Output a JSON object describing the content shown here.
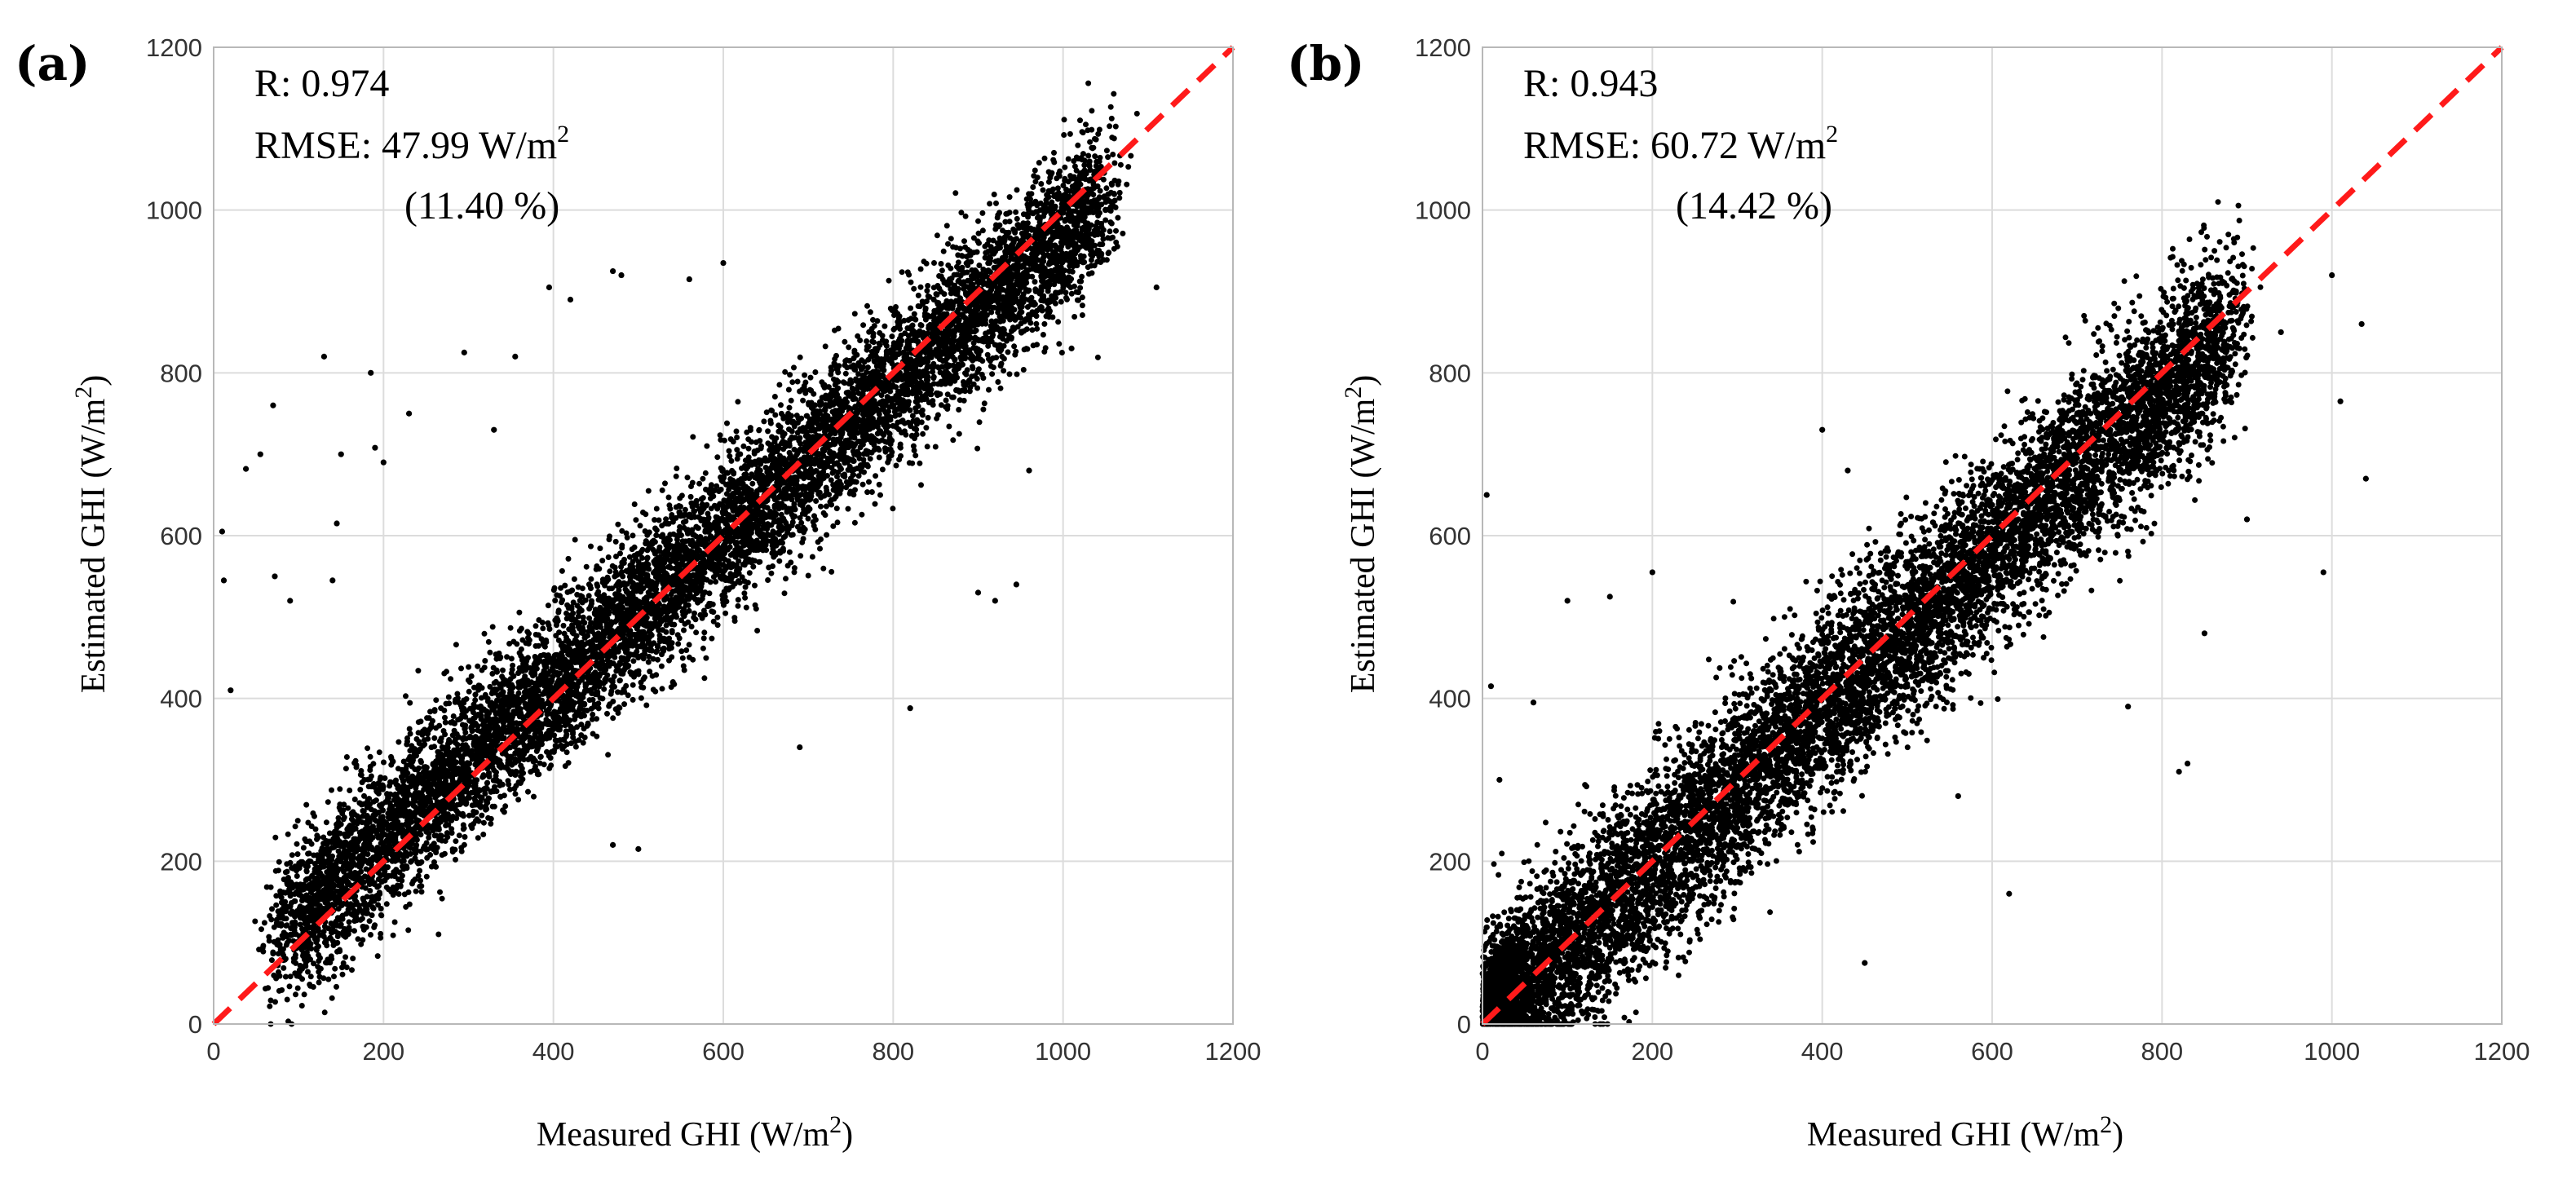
{
  "chart_data": [
    {
      "id": "a",
      "type": "scatter",
      "panel_label": "(a)",
      "xlabel": "Measured GHI (W/m",
      "xlabel_sup": "2",
      "xlabel_end": ")",
      "ylabel": "Estimated GHI (W/m",
      "ylabel_sup": "2",
      "ylabel_end": ")",
      "xlim": [
        0,
        1200
      ],
      "ylim": [
        0,
        1200
      ],
      "xticks": [
        0,
        200,
        400,
        600,
        800,
        1000,
        1200
      ],
      "yticks": [
        0,
        200,
        400,
        600,
        800,
        1000,
        1200
      ],
      "grid": true,
      "reference_line": "1:1",
      "stats": {
        "r_line": "R: 0.974",
        "rmse_line": "RMSE: 47.99 W/m",
        "rmse_sup": "2",
        "pct_line": "(11.40 %)"
      },
      "series": [
        {
          "name": "points",
          "color": "#000000",
          "trend": {
            "slope": 0.93,
            "intercept": 42,
            "x_range": [
              60,
              1070
            ],
            "spread": 48,
            "count": 9000
          },
          "outliers": [
            {
              "x": 10,
              "y": 605
            },
            {
              "x": 12,
              "y": 545
            },
            {
              "x": 20,
              "y": 410
            },
            {
              "x": 38,
              "y": 682
            },
            {
              "x": 55,
              "y": 700
            },
            {
              "x": 70,
              "y": 760
            },
            {
              "x": 72,
              "y": 550
            },
            {
              "x": 90,
              "y": 520
            },
            {
              "x": 130,
              "y": 820
            },
            {
              "x": 140,
              "y": 545
            },
            {
              "x": 145,
              "y": 615
            },
            {
              "x": 150,
              "y": 700
            },
            {
              "x": 185,
              "y": 800
            },
            {
              "x": 190,
              "y": 708
            },
            {
              "x": 200,
              "y": 690
            },
            {
              "x": 230,
              "y": 750
            },
            {
              "x": 295,
              "y": 825
            },
            {
              "x": 330,
              "y": 730
            },
            {
              "x": 355,
              "y": 820
            },
            {
              "x": 395,
              "y": 905
            },
            {
              "x": 420,
              "y": 890
            },
            {
              "x": 470,
              "y": 925
            },
            {
              "x": 480,
              "y": 920
            },
            {
              "x": 560,
              "y": 915
            },
            {
              "x": 600,
              "y": 935
            },
            {
              "x": 690,
              "y": 340
            },
            {
              "x": 820,
              "y": 388
            },
            {
              "x": 900,
              "y": 530
            },
            {
              "x": 920,
              "y": 520
            },
            {
              "x": 945,
              "y": 540
            },
            {
              "x": 960,
              "y": 680
            },
            {
              "x": 1010,
              "y": 830
            },
            {
              "x": 1110,
              "y": 905
            },
            {
              "x": 1050,
              "y": 1000
            },
            {
              "x": 470,
              "y": 220
            },
            {
              "x": 500,
              "y": 215
            }
          ]
        }
      ]
    },
    {
      "id": "b",
      "type": "scatter",
      "panel_label": "(b)",
      "xlabel": "Measured GHI (W/m",
      "xlabel_sup": "2",
      "xlabel_end": ")",
      "ylabel": "Estimated GHI (W/m",
      "ylabel_sup": "2",
      "ylabel_end": ")",
      "xlim": [
        0,
        1200
      ],
      "ylim": [
        0,
        1200
      ],
      "xticks": [
        0,
        200,
        400,
        600,
        800,
        1000,
        1200
      ],
      "yticks": [
        0,
        200,
        400,
        600,
        800,
        1000,
        1200
      ],
      "grid": true,
      "reference_line": "1:1",
      "stats": {
        "r_line": "R: 0.943",
        "rmse_line": "RMSE: 60.72 W/m",
        "rmse_sup": "2",
        "pct_line": "(14.42 %)"
      },
      "series": [
        {
          "name": "points",
          "color": "#000000",
          "trend": {
            "slope": 0.97,
            "intercept": 0,
            "x_range": [
              0,
              900
            ],
            "spread": 58,
            "count": 9000
          },
          "outliers": [
            {
              "x": 5,
              "y": 650
            },
            {
              "x": 10,
              "y": 415
            },
            {
              "x": 20,
              "y": 300
            },
            {
              "x": 60,
              "y": 395
            },
            {
              "x": 100,
              "y": 520
            },
            {
              "x": 150,
              "y": 525
            },
            {
              "x": 200,
              "y": 555
            },
            {
              "x": 400,
              "y": 730
            },
            {
              "x": 430,
              "y": 680
            },
            {
              "x": 450,
              "y": 75
            },
            {
              "x": 560,
              "y": 280
            },
            {
              "x": 590,
              "y": 450
            },
            {
              "x": 620,
              "y": 160
            },
            {
              "x": 760,
              "y": 390
            },
            {
              "x": 820,
              "y": 310
            },
            {
              "x": 830,
              "y": 320
            },
            {
              "x": 850,
              "y": 480
            },
            {
              "x": 870,
              "y": 880
            },
            {
              "x": 900,
              "y": 620
            },
            {
              "x": 940,
              "y": 850
            },
            {
              "x": 990,
              "y": 555
            },
            {
              "x": 1000,
              "y": 920
            },
            {
              "x": 1010,
              "y": 765
            },
            {
              "x": 1040,
              "y": 670
            },
            {
              "x": 1035,
              "y": 860
            }
          ]
        }
      ]
    }
  ]
}
